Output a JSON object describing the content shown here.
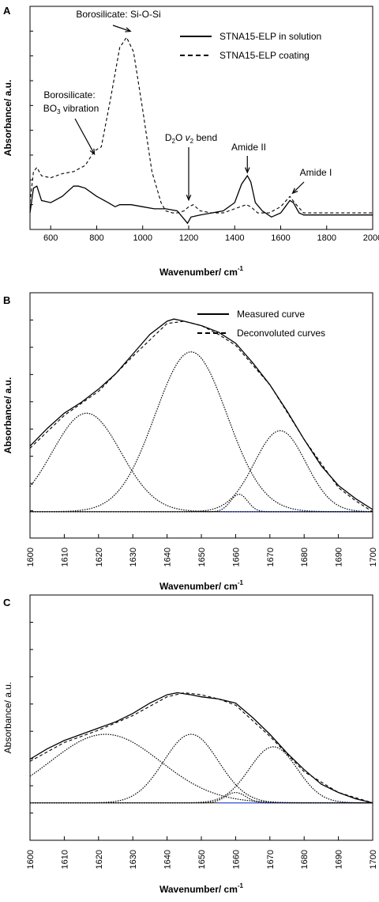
{
  "chart_data": [
    {
      "type": "line",
      "panel_label": "A",
      "xlabel": "Wavenumber/ cm",
      "xlabel_sup": "-1",
      "ylabel": "Absorbance/ a.u.",
      "xlim": [
        510,
        2000
      ],
      "ylim": [
        -0.08,
        1.0
      ],
      "xticks": [
        600,
        800,
        1000,
        1200,
        1400,
        1600,
        1800,
        2000
      ],
      "series": [
        {
          "name": "STNA15-ELP in solution",
          "style": "solid",
          "x": [
            510,
            525,
            540,
            560,
            600,
            650,
            700,
            720,
            750,
            800,
            850,
            880,
            900,
            950,
            1000,
            1050,
            1100,
            1150,
            1180,
            1195,
            1210,
            1250,
            1300,
            1350,
            1400,
            1430,
            1455,
            1470,
            1490,
            1520,
            1560,
            1600,
            1620,
            1640,
            1655,
            1680,
            1700,
            1750,
            1800,
            1900,
            2000
          ],
          "y": [
            0.0,
            0.12,
            0.13,
            0.06,
            0.05,
            0.08,
            0.13,
            0.13,
            0.12,
            0.08,
            0.05,
            0.03,
            0.04,
            0.04,
            0.03,
            0.02,
            0.02,
            0.01,
            -0.03,
            -0.05,
            -0.02,
            -0.01,
            0.0,
            0.01,
            0.05,
            0.14,
            0.18,
            0.15,
            0.05,
            0.01,
            -0.02,
            0.0,
            0.03,
            0.06,
            0.05,
            0.0,
            -0.01,
            -0.01,
            -0.01,
            -0.01,
            -0.01
          ]
        },
        {
          "name": "STNA15-ELP coating",
          "style": "dashed",
          "x": [
            510,
            525,
            540,
            560,
            600,
            650,
            700,
            750,
            790,
            820,
            860,
            900,
            930,
            960,
            1000,
            1040,
            1080,
            1100,
            1130,
            1150,
            1180,
            1200,
            1220,
            1250,
            1300,
            1350,
            1400,
            1450,
            1470,
            1500,
            1550,
            1600,
            1640,
            1660,
            1700,
            1800,
            1900,
            2000
          ],
          "y": [
            0.05,
            0.2,
            0.22,
            0.18,
            0.17,
            0.19,
            0.2,
            0.23,
            0.3,
            0.32,
            0.55,
            0.8,
            0.85,
            0.78,
            0.5,
            0.2,
            0.05,
            0.01,
            0.0,
            0.0,
            0.01,
            0.03,
            0.04,
            0.01,
            0.0,
            0.0,
            0.02,
            0.04,
            0.03,
            0.0,
            0.0,
            0.03,
            0.08,
            0.05,
            0.0,
            0.0,
            0.0,
            0.0
          ]
        }
      ],
      "annotations": [
        {
          "text": "Borosilicate: Si-O-Si",
          "x": 940,
          "y": 0.86
        },
        {
          "text": "Borosilicate:",
          "x": 790,
          "y": 0.3
        },
        {
          "text": "BO",
          "sub": "3",
          "rest": " vibration",
          "x": 790,
          "y": 0.3
        },
        {
          "text": "D",
          "sub": "2",
          "rest": "O ",
          "it": "v",
          "itsub": "2",
          "tail": " bend",
          "x": 1200,
          "y": 0.04
        },
        {
          "text": "Amide II",
          "x": 1455,
          "y": 0.18
        },
        {
          "text": "Amide I",
          "x": 1645,
          "y": 0.08
        }
      ],
      "legend_position": "top-right"
    },
    {
      "type": "line",
      "panel_label": "B",
      "xlabel": "Wavenumber/ cm",
      "xlabel_sup": "-1",
      "ylabel": "Absorbance/ a.u.",
      "xlim": [
        1600,
        1700
      ],
      "ylim": [
        -0.12,
        1.0
      ],
      "xticks": [
        1600,
        1610,
        1620,
        1630,
        1640,
        1650,
        1660,
        1670,
        1680,
        1690,
        1700
      ],
      "series": [
        {
          "name": "Measured curve",
          "style": "solid",
          "x": [
            1600,
            1605,
            1610,
            1615,
            1620,
            1625,
            1630,
            1635,
            1640,
            1642,
            1645,
            1650,
            1655,
            1660,
            1665,
            1670,
            1675,
            1680,
            1685,
            1690,
            1695,
            1700
          ],
          "y": [
            0.3,
            0.38,
            0.45,
            0.5,
            0.56,
            0.63,
            0.72,
            0.81,
            0.87,
            0.88,
            0.87,
            0.85,
            0.82,
            0.77,
            0.68,
            0.58,
            0.46,
            0.33,
            0.21,
            0.12,
            0.06,
            0.01
          ]
        },
        {
          "name": "Deconvoluted curves",
          "style": "dashed",
          "x": [
            1600,
            1610,
            1620,
            1630,
            1640,
            1645,
            1650,
            1655,
            1660,
            1670,
            1680,
            1690,
            1695,
            1700
          ],
          "y": [
            0.29,
            0.44,
            0.55,
            0.71,
            0.86,
            0.87,
            0.85,
            0.81,
            0.76,
            0.58,
            0.33,
            0.11,
            0.05,
            0.0
          ]
        }
      ],
      "components": [
        {
          "center": 1616.5,
          "amp": 0.45,
          "sigma": 10
        },
        {
          "center": 1647,
          "amp": 0.73,
          "sigma": 10.5
        },
        {
          "center": 1661,
          "amp": 0.08,
          "sigma": 2.5
        },
        {
          "center": 1673,
          "amp": 0.37,
          "sigma": 7.5
        }
      ],
      "baseline_color": "#3355ff",
      "legend_position": "top-right"
    },
    {
      "type": "line",
      "panel_label": "C",
      "xlabel": "Wavenumber/ cm",
      "xlabel_sup": "-1",
      "ylabel": "Absorbance/ a.u.",
      "xlim": [
        1600,
        1700
      ],
      "ylim": [
        -0.18,
        1.0
      ],
      "xticks": [
        1600,
        1610,
        1620,
        1630,
        1640,
        1650,
        1660,
        1670,
        1680,
        1690,
        1700
      ],
      "series": [
        {
          "name": "Measured curve",
          "style": "solid",
          "x": [
            1600,
            1605,
            1610,
            1615,
            1620,
            1625,
            1630,
            1635,
            1640,
            1643,
            1647,
            1650,
            1655,
            1660,
            1665,
            1670,
            1675,
            1680,
            1685,
            1690,
            1695,
            1700
          ],
          "y": [
            0.21,
            0.26,
            0.3,
            0.33,
            0.36,
            0.39,
            0.43,
            0.48,
            0.52,
            0.53,
            0.52,
            0.51,
            0.5,
            0.48,
            0.41,
            0.33,
            0.24,
            0.16,
            0.09,
            0.05,
            0.02,
            0.0
          ]
        },
        {
          "name": "Deconvoluted curves",
          "style": "dashed",
          "x": [
            1600,
            1610,
            1620,
            1630,
            1640,
            1645,
            1650,
            1655,
            1660,
            1670,
            1680,
            1690,
            1700
          ],
          "y": [
            0.2,
            0.29,
            0.35,
            0.42,
            0.51,
            0.53,
            0.52,
            0.5,
            0.47,
            0.32,
            0.15,
            0.05,
            0.0
          ]
        }
      ],
      "components": [
        {
          "center": 1622,
          "amp": 0.33,
          "sigma": 16
        },
        {
          "center": 1647,
          "amp": 0.33,
          "sigma": 8
        },
        {
          "center": 1660,
          "amp": 0.05,
          "sigma": 3
        },
        {
          "center": 1671,
          "amp": 0.27,
          "sigma": 7
        }
      ],
      "baseline_color": "#3355ff"
    }
  ]
}
